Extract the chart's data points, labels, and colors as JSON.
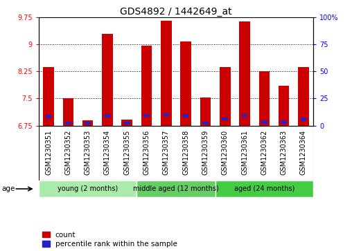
{
  "title": "GDS4892 / 1442649_at",
  "samples": [
    "GSM1230351",
    "GSM1230352",
    "GSM1230353",
    "GSM1230354",
    "GSM1230355",
    "GSM1230356",
    "GSM1230357",
    "GSM1230358",
    "GSM1230359",
    "GSM1230360",
    "GSM1230361",
    "GSM1230362",
    "GSM1230363",
    "GSM1230364"
  ],
  "count_values": [
    8.38,
    7.5,
    6.9,
    9.3,
    6.92,
    8.97,
    9.67,
    9.08,
    7.53,
    8.38,
    9.65,
    8.26,
    7.85,
    8.38
  ],
  "percentile_values": [
    7.0,
    6.82,
    6.82,
    7.02,
    6.82,
    7.03,
    7.05,
    7.02,
    6.82,
    6.93,
    7.03,
    6.85,
    6.85,
    6.92
  ],
  "ymin": 6.75,
  "ymax": 9.75,
  "yticks": [
    6.75,
    7.5,
    8.25,
    9.0,
    9.75
  ],
  "ytick_labels": [
    "6.75",
    "7.5",
    "8.25",
    "9",
    "9.75"
  ],
  "right_yticks": [
    0,
    25,
    50,
    75,
    100
  ],
  "right_ytick_labels": [
    "0",
    "25",
    "50",
    "75",
    "100%"
  ],
  "bar_color": "#cc0000",
  "percentile_color": "#2222cc",
  "bar_width": 0.55,
  "groups": [
    {
      "label": "young (2 months)",
      "start": 0,
      "end": 5
    },
    {
      "label": "middle aged (12 months)",
      "start": 5,
      "end": 9
    },
    {
      "label": "aged (24 months)",
      "start": 9,
      "end": 14
    }
  ],
  "group_colors": [
    "#aaeaaa",
    "#66cc66",
    "#44cc44"
  ],
  "age_label": "age",
  "legend_count": "count",
  "legend_percentile": "percentile rank within the sample",
  "xtick_bg": "#cccccc",
  "plot_bg": "#ffffff",
  "title_fontsize": 10,
  "tick_fontsize": 7,
  "label_fontsize": 7.5
}
